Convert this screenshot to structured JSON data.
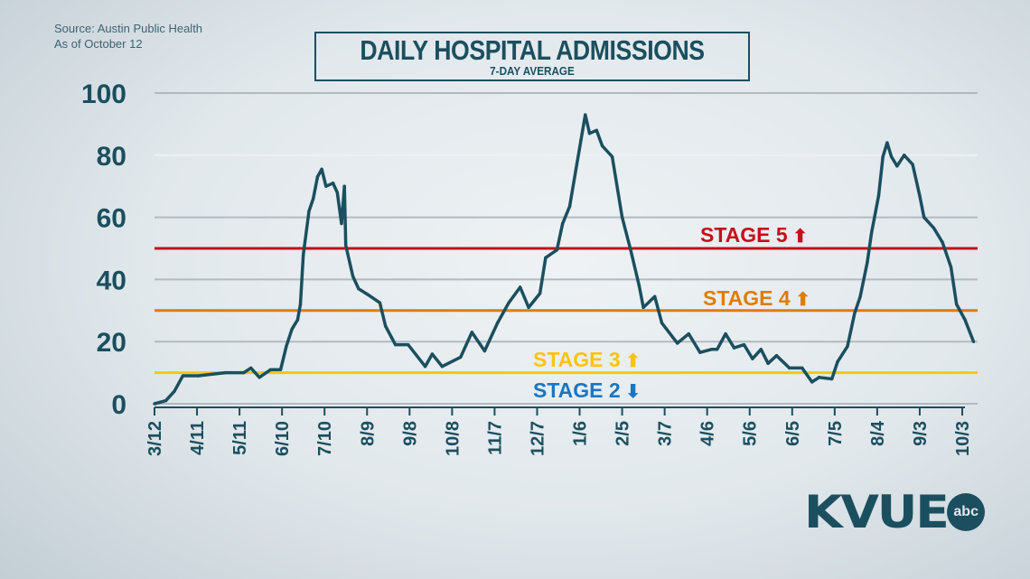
{
  "source": "Source: Austin Public Health",
  "as_of": "As of October 12",
  "logo": {
    "text": "KVUE",
    "badge": "abc"
  },
  "chart_data": {
    "type": "line",
    "title": "DAILY HOSPITAL ADMISSIONS",
    "subtitle": "7-DAY AVERAGE",
    "ylim": [
      0,
      100
    ],
    "yticks": [
      0,
      20,
      40,
      60,
      80,
      100
    ],
    "xticks": [
      {
        "date": "2020-03-12",
        "label": "3/12"
      },
      {
        "date": "2020-04-11",
        "label": "4/11"
      },
      {
        "date": "2020-05-11",
        "label": "5/11"
      },
      {
        "date": "2020-06-10",
        "label": "6/10"
      },
      {
        "date": "2020-07-10",
        "label": "7/10"
      },
      {
        "date": "2020-08-09",
        "label": "8/9"
      },
      {
        "date": "2020-09-08",
        "label": "9/8"
      },
      {
        "date": "2020-10-08",
        "label": "10/8"
      },
      {
        "date": "2020-11-07",
        "label": "11/7"
      },
      {
        "date": "2020-12-07",
        "label": "12/7"
      },
      {
        "date": "2021-01-06",
        "label": "1/6"
      },
      {
        "date": "2021-02-05",
        "label": "2/5"
      },
      {
        "date": "2021-03-07",
        "label": "3/7"
      },
      {
        "date": "2021-04-06",
        "label": "4/6"
      },
      {
        "date": "2021-05-06",
        "label": "5/6"
      },
      {
        "date": "2021-06-05",
        "label": "6/5"
      },
      {
        "date": "2021-07-05",
        "label": "7/5"
      },
      {
        "date": "2021-08-04",
        "label": "8/4"
      },
      {
        "date": "2021-09-03",
        "label": "9/3"
      },
      {
        "date": "2021-10-03",
        "label": "10/3"
      }
    ],
    "grid": true,
    "line_color": "#1b4f5f",
    "thresholds": [
      {
        "label": "STAGE 5",
        "arrow": "up",
        "value": 50,
        "color": "#c40f1a"
      },
      {
        "label": "STAGE 4",
        "arrow": "up",
        "value": 30,
        "color": "#e07c05"
      },
      {
        "label": "STAGE 3",
        "arrow": "up",
        "value": 10,
        "color": "#ffc314"
      },
      {
        "label": "STAGE 2",
        "arrow": "down",
        "value": 10,
        "color": "#1976c2"
      }
    ],
    "series": [
      {
        "x": [
          "2020-03-12",
          "2020-03-20",
          "2020-03-26",
          "2020-04-01",
          "2020-04-12",
          "2020-05-01",
          "2020-05-14",
          "2020-05-19",
          "2020-05-25",
          "2020-06-02",
          "2020-06-09",
          "2020-06-13",
          "2020-06-17",
          "2020-06-21",
          "2020-06-23",
          "2020-06-25",
          "2020-06-29",
          "2020-07-02",
          "2020-07-05",
          "2020-07-08",
          "2020-07-11",
          "2020-07-16",
          "2020-07-19",
          "2020-07-22",
          "2020-07-24",
          "2020-07-25",
          "2020-07-30",
          "2020-08-03",
          "2020-08-10",
          "2020-08-18",
          "2020-08-22",
          "2020-08-29",
          "2020-09-07",
          "2020-09-19",
          "2020-09-24",
          "2020-10-01",
          "2020-10-14",
          "2020-10-22",
          "2020-10-31",
          "2020-11-09",
          "2020-11-17",
          "2020-11-25",
          "2020-12-01",
          "2020-12-09",
          "2020-12-13",
          "2020-12-21",
          "2020-12-25",
          "2020-12-30",
          "2021-01-04",
          "2021-01-07",
          "2021-01-10",
          "2021-01-13",
          "2021-01-18",
          "2021-01-22",
          "2021-01-29",
          "2021-02-05",
          "2021-02-11",
          "2021-02-17",
          "2021-02-20",
          "2021-02-28",
          "2021-03-05",
          "2021-03-16",
          "2021-03-24",
          "2021-04-01",
          "2021-04-09",
          "2021-04-13",
          "2021-04-19",
          "2021-04-25",
          "2021-05-02",
          "2021-05-08",
          "2021-05-14",
          "2021-05-19",
          "2021-05-25",
          "2021-06-03",
          "2021-06-12",
          "2021-06-19",
          "2021-06-24",
          "2021-07-03",
          "2021-07-07",
          "2021-07-14",
          "2021-07-19",
          "2021-07-23",
          "2021-07-28",
          "2021-07-31",
          "2021-08-05",
          "2021-08-08",
          "2021-08-11",
          "2021-08-14",
          "2021-08-18",
          "2021-08-23",
          "2021-08-29",
          "2021-09-03",
          "2021-09-06",
          "2021-09-13",
          "2021-09-19",
          "2021-09-25",
          "2021-09-29",
          "2021-10-05",
          "2021-10-11"
        ],
        "y": [
          0,
          1,
          4,
          9,
          9,
          10,
          10,
          11.5,
          8.5,
          11,
          11,
          18.5,
          24,
          27,
          32,
          48,
          62,
          66,
          73,
          75.5,
          70,
          71,
          68,
          58,
          70,
          51,
          41,
          37,
          35,
          32.5,
          25,
          19,
          19,
          12,
          16,
          12,
          15,
          23,
          17,
          26,
          32.5,
          37.5,
          31,
          35.5,
          47,
          49.5,
          58,
          63.5,
          77,
          85,
          93,
          87,
          88,
          83,
          79.5,
          60,
          49.5,
          38,
          31,
          34.5,
          26,
          19.5,
          22.5,
          16.5,
          17.5,
          17.5,
          22.5,
          18,
          19,
          14.5,
          17.5,
          13,
          15.5,
          11.5,
          11.5,
          7,
          8.5,
          8,
          13.5,
          18.5,
          29,
          34.5,
          45.5,
          55,
          67,
          79.5,
          84,
          79.5,
          76.5,
          80,
          77,
          67,
          60,
          56.5,
          52,
          44,
          32,
          27,
          20
        ]
      }
    ]
  }
}
